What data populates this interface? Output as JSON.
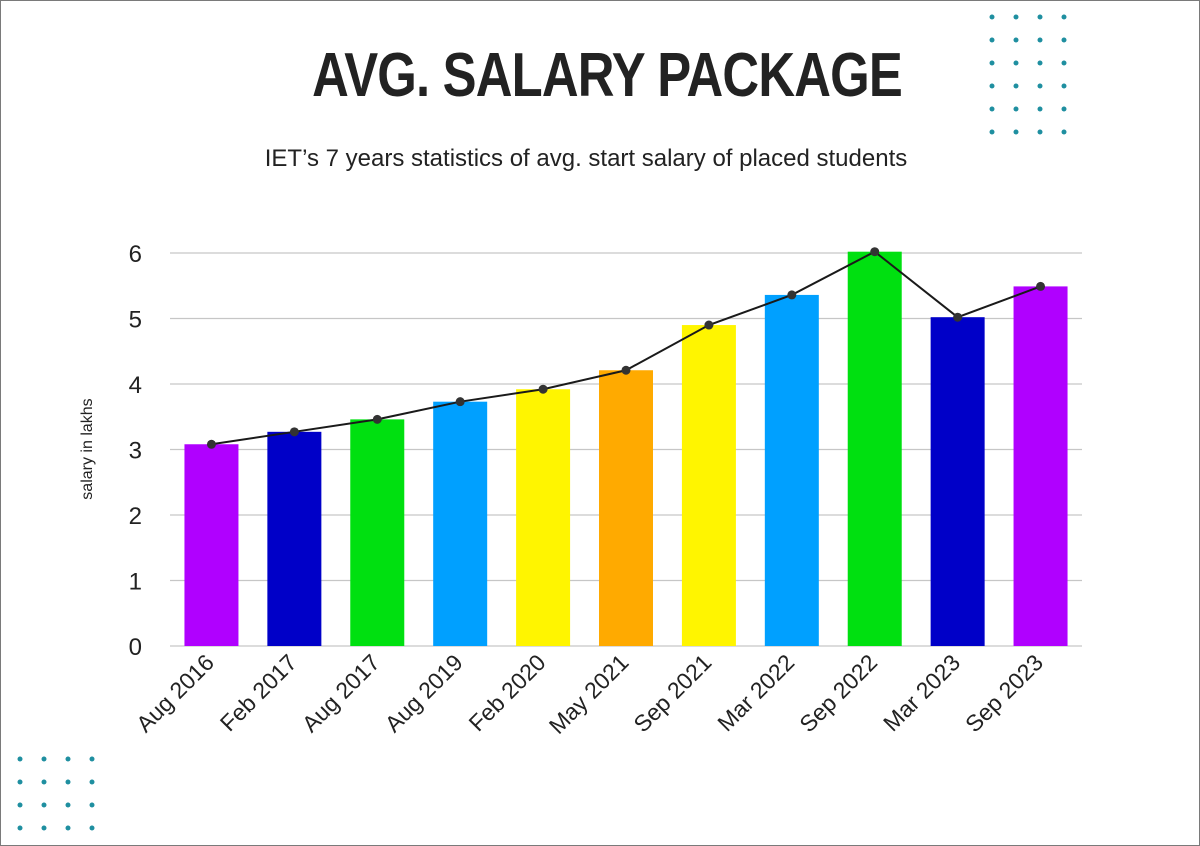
{
  "title": "AVG. SALARY PACKAGE",
  "subtitle": "IET’s 7 years statistics of avg. start salary of placed students",
  "decor": {
    "dot_color": "#1f8fa0"
  },
  "chart_data": {
    "type": "bar",
    "categories": [
      "Aug 2016",
      "Feb 2017",
      "Aug 2017",
      "Aug 2019",
      "Feb 2020",
      "May 2021",
      "Sep 2021",
      "Mar 2022",
      "Sep 2022",
      "Mar 2023",
      "Sep 2023"
    ],
    "values": [
      3.08,
      3.27,
      3.46,
      3.73,
      3.92,
      4.21,
      4.9,
      5.36,
      6.02,
      5.02,
      5.49
    ],
    "colors": [
      "#b000ff",
      "#0000c8",
      "#00e010",
      "#00a0ff",
      "#fff500",
      "#ffaa00",
      "#fff500",
      "#00a0ff",
      "#00e010",
      "#0000c8",
      "#b000ff"
    ],
    "overlay": {
      "type": "line",
      "values": [
        3.08,
        3.27,
        3.46,
        3.73,
        3.92,
        4.21,
        4.9,
        5.36,
        6.02,
        5.02,
        5.49
      ],
      "color": "#1a1a1a"
    },
    "title": "AVG. SALARY PACKAGE",
    "subtitle": "IET’s 7 years statistics of avg. start salary of placed students",
    "xlabel": "",
    "ylabel": "salary in lakhs",
    "ylim": [
      0,
      6
    ],
    "yticks": [
      "0",
      "1",
      "2",
      "3",
      "4",
      "5",
      "6"
    ],
    "grid": true,
    "legend": "none"
  }
}
